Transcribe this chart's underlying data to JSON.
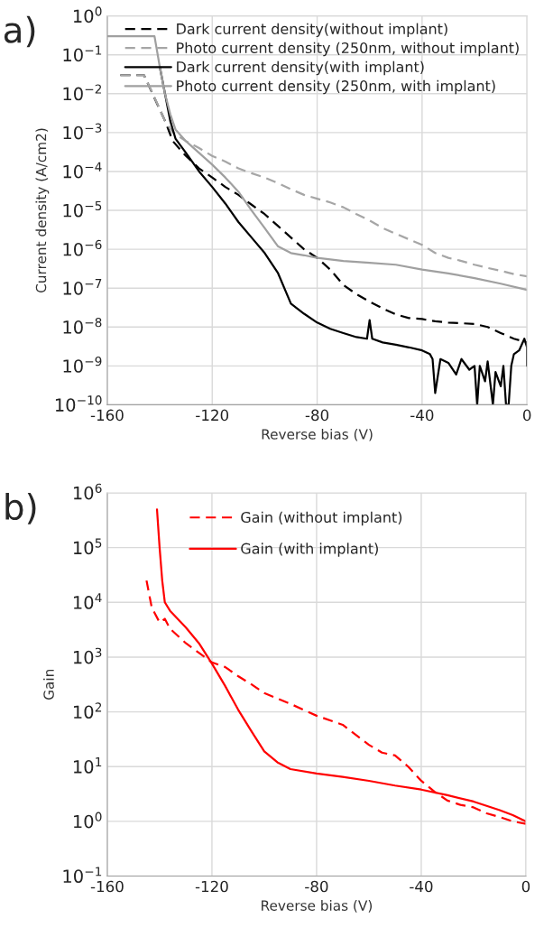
{
  "chart_data": [
    {
      "type": "line",
      "title": "a)",
      "xlabel": "Reverse bias (V)",
      "ylabel": "Current density (A/cm2)",
      "log": "y",
      "grid": true,
      "legend": "top right",
      "xlim": [
        -160,
        0
      ],
      "xticks": [
        -160,
        -120,
        -80,
        -40,
        0
      ],
      "ylim": [
        1e-10,
        1
      ],
      "yticks": [
        {
          "value": 1e-10,
          "label": "10$^{−10}$"
        },
        {
          "value": 1e-09,
          "label": "10$^{−9}$"
        },
        {
          "value": 1e-08,
          "label": "10$^{−8}$"
        },
        {
          "value": 1e-07,
          "label": "10$^{−7}$"
        },
        {
          "value": 1e-06,
          "label": "10$^{−6}$"
        },
        {
          "value": 1e-05,
          "label": "10$^{−5}$"
        },
        {
          "value": 0.0001,
          "label": "10$^{−4}$"
        },
        {
          "value": 0.001,
          "label": "10$^{−3}$"
        },
        {
          "value": 0.01,
          "label": "10$^{−2}$"
        },
        {
          "value": 0.1,
          "label": "10$^{−1}$"
        },
        {
          "value": 1,
          "label": "10$^{0}$"
        }
      ],
      "series": [
        {
          "name": "Dark current density(without implant)",
          "color": "#000000",
          "line_style": "dashed",
          "x": [
            -155,
            -146,
            -138,
            -135,
            -130,
            -125,
            -120,
            -115,
            -110,
            -105,
            -100,
            -95,
            -90,
            -85,
            -80,
            -75,
            -70,
            -65,
            -60,
            -55,
            -50,
            -45,
            -40,
            -35,
            -30,
            -25,
            -20,
            -15,
            -10,
            -5,
            0
          ],
          "values": [
            0.03,
            0.03,
            0.002,
            0.0006,
            0.00025,
            0.00012,
            7e-05,
            4e-05,
            2.5e-05,
            1.4e-05,
            8e-06,
            4e-06,
            2e-06,
            1e-06,
            6e-07,
            3e-07,
            1.2e-07,
            7e-08,
            4.5e-08,
            3e-08,
            2.1e-08,
            1.7e-08,
            1.6e-08,
            1.4e-08,
            1.3e-08,
            1.25e-08,
            1.2e-08,
            1e-08,
            7e-09,
            5e-09,
            4e-09
          ]
        },
        {
          "name": "Photo current density (250nm, without implant)",
          "color": "#a6a6a6",
          "line_style": "dashed",
          "x": [
            -155,
            -146,
            -142,
            -138,
            -135,
            -130,
            -125,
            -120,
            -115,
            -110,
            -105,
            -100,
            -95,
            -90,
            -85,
            -80,
            -75,
            -70,
            -65,
            -60,
            -55,
            -50,
            -45,
            -40,
            -35,
            -30,
            -25,
            -20,
            -15,
            -10,
            -5,
            0
          ],
          "values": [
            0.03,
            0.03,
            0.008,
            0.002,
            0.001,
            0.0006,
            0.0004,
            0.00025,
            0.00018,
            0.00012,
            9e-05,
            7e-05,
            5e-05,
            3.5e-05,
            2.5e-05,
            2e-05,
            1.6e-05,
            1.2e-05,
            8e-06,
            5.5e-06,
            3.5e-06,
            2.5e-06,
            1.8e-06,
            1.3e-06,
            8e-07,
            6e-07,
            5e-07,
            4e-07,
            3.3e-07,
            2.8e-07,
            2.3e-07,
            2e-07
          ]
        },
        {
          "name": "Dark current density(with implant)",
          "color": "#000000",
          "line_style": "solid",
          "x": [
            -140,
            -138,
            -136,
            -134,
            -130,
            -125,
            -120,
            -115,
            -110,
            -105,
            -100,
            -95,
            -90,
            -85,
            -80,
            -75,
            -70,
            -65,
            -61,
            -60,
            -59,
            -55,
            -50,
            -45,
            -40,
            -37,
            -36,
            -35,
            -33,
            -30,
            -27,
            -25,
            -22,
            -20,
            -19,
            -18,
            -16,
            -15,
            -13,
            -12,
            -10,
            -9,
            -8,
            -7,
            -6,
            -5,
            -3,
            -1,
            0,
            0
          ],
          "values": [
            0.05,
            0.01,
            0.002,
            0.0007,
            0.0003,
            0.0001,
            4e-05,
            1.5e-05,
            5e-06,
            2e-06,
            8e-07,
            2.5e-07,
            4e-08,
            2.2e-08,
            1.3e-08,
            9e-09,
            7e-09,
            5.5e-09,
            5e-09,
            1.5e-08,
            5e-09,
            4e-09,
            3.5e-09,
            3e-09,
            2.5e-09,
            2e-09,
            1.5e-09,
            2e-10,
            1.5e-09,
            1.2e-09,
            6e-10,
            1.5e-09,
            8e-10,
            1e-09,
            1e-10,
            1e-09,
            4e-10,
            1.3e-09,
            1e-10,
            7e-10,
            3e-10,
            1e-09,
            1e-10,
            1e-10,
            1e-09,
            2e-09,
            2.5e-09,
            5e-09,
            3e-09,
            1e-09
          ]
        },
        {
          "name": "Photo current density (250nm, with implant)",
          "color": "#a0a0a0",
          "line_style": "solid",
          "x": [
            -160,
            -142,
            -140,
            -138,
            -136,
            -134,
            -130,
            -125,
            -120,
            -115,
            -110,
            -105,
            -100,
            -95,
            -90,
            -85,
            -80,
            -70,
            -60,
            -50,
            -40,
            -30,
            -20,
            -10,
            0
          ],
          "values": [
            0.3,
            0.3,
            0.05,
            0.01,
            0.003,
            0.0012,
            0.0006,
            0.0003,
            0.00015,
            7e-05,
            3e-05,
            1e-05,
            3.5e-06,
            1.2e-06,
            8e-07,
            7e-07,
            6e-07,
            5e-07,
            4.5e-07,
            4e-07,
            3e-07,
            2.4e-07,
            1.8e-07,
            1.3e-07,
            9e-08
          ]
        }
      ]
    },
    {
      "type": "line",
      "title": "b)",
      "xlabel": "Reverse bias (V)",
      "ylabel": "Gain",
      "log": "y",
      "grid": true,
      "legend": "top",
      "xlim": [
        -160,
        0
      ],
      "xticks": [
        -160,
        -120,
        -80,
        -40,
        0
      ],
      "ylim": [
        0.1,
        1000000
      ],
      "yticks": [
        {
          "value": 0.1,
          "label": "10$^{−1}$"
        },
        {
          "value": 1,
          "label": "10$^{0}$"
        },
        {
          "value": 10,
          "label": "10$^{1}$"
        },
        {
          "value": 100,
          "label": "10$^{2}$"
        },
        {
          "value": 1000,
          "label": "10$^{3}$"
        },
        {
          "value": 10000,
          "label": "10$^{4}$"
        },
        {
          "value": 100000,
          "label": "10$^{5}$"
        },
        {
          "value": 1000000,
          "label": "10$^{6}$"
        }
      ],
      "series": [
        {
          "name": "Gain (without implant)",
          "color": "#ff0000",
          "line_style": "dashed",
          "x": [
            -145,
            -143,
            -140,
            -138,
            -136,
            -130,
            -125,
            -120,
            -115,
            -110,
            -105,
            -100,
            -90,
            -80,
            -70,
            -60,
            -55,
            -50,
            -45,
            -40,
            -35,
            -30,
            -25,
            -20,
            -15,
            -10,
            -5,
            0
          ],
          "values": [
            25000,
            8000,
            4300,
            5000,
            3300,
            1800,
            1200,
            800,
            660,
            450,
            320,
            220,
            140,
            85,
            58,
            25,
            18,
            16,
            10,
            5.5,
            3.5,
            2.4,
            2.0,
            1.8,
            1.4,
            1.2,
            1.0,
            0.9
          ]
        },
        {
          "name": "Gain (with implant)",
          "color": "#ff0000",
          "line_style": "solid",
          "x": [
            -141,
            -140,
            -139,
            -138,
            -136,
            -130,
            -125,
            -120,
            -115,
            -110,
            -105,
            -100,
            -95,
            -90,
            -80,
            -70,
            -60,
            -50,
            -40,
            -30,
            -20,
            -10,
            -5,
            0
          ],
          "values": [
            500000,
            100000,
            25000,
            10000,
            7000,
            3500,
            1800,
            760,
            300,
            110,
            45,
            19,
            12,
            9,
            7.5,
            6.5,
            5.5,
            4.5,
            3.8,
            3.0,
            2.3,
            1.6,
            1.3,
            1.0
          ]
        }
      ]
    }
  ]
}
